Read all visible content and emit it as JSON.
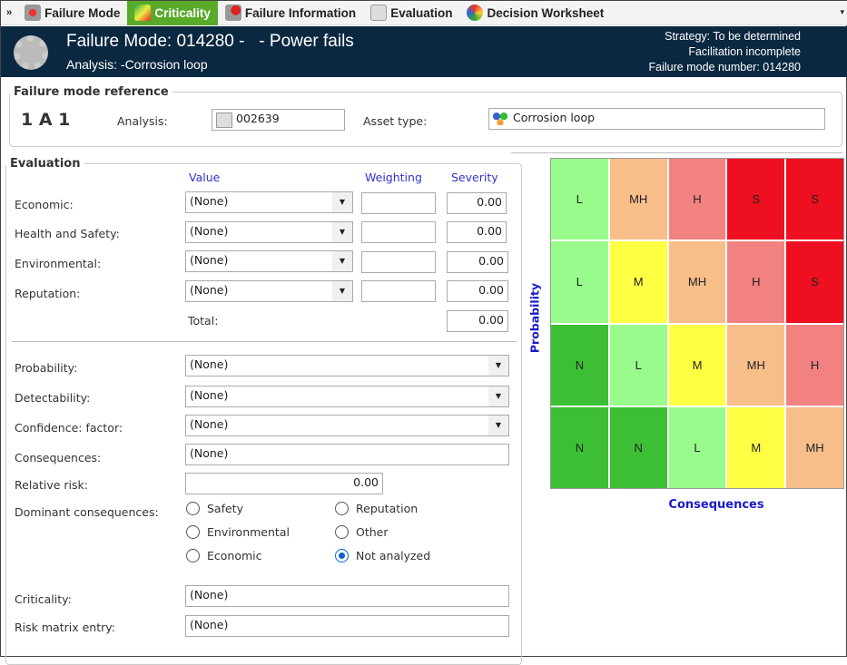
{
  "tabs": [
    {
      "label": "Failure Mode",
      "icon": "failure-mode-icon"
    },
    {
      "label": "Criticality",
      "icon": "criticality-icon",
      "active": true
    },
    {
      "label": "Failure Information",
      "icon": "failure-info-icon"
    },
    {
      "label": "Evaluation",
      "icon": "rcm2-icon"
    },
    {
      "label": "Decision Worksheet",
      "icon": "decision-icon"
    }
  ],
  "header": {
    "title": "Failure Mode: 014280 -   - Power fails",
    "subtitle": "Analysis: -Corrosion loop",
    "strategy": "Strategy: To be determined",
    "facilitation": "Facilitation incomplete",
    "number": "Failure mode number: 014280"
  },
  "reference": {
    "legend": "Failure mode reference",
    "code": "1 A 1",
    "analysis_label": "Analysis:",
    "analysis_value": "002639",
    "asset_label": "Asset type:",
    "asset_value": "Corrosion loop"
  },
  "evaluation": {
    "legend": "Evaluation",
    "col_value": "Value",
    "col_weighting": "Weighting",
    "col_severity": "Severity",
    "rows": [
      {
        "label": "Economic:",
        "value": "(None)",
        "weighting": "",
        "severity": "0.00"
      },
      {
        "label": "Health and Safety:",
        "value": "(None)",
        "weighting": "",
        "severity": "0.00"
      },
      {
        "label": "Environmental:",
        "value": "(None)",
        "weighting": "",
        "severity": "0.00"
      },
      {
        "label": "Reputation:",
        "value": "(None)",
        "weighting": "",
        "severity": "0.00"
      }
    ],
    "total_label": "Total:",
    "total": "0.00",
    "probability_label": "Probability:",
    "probability": "(None)",
    "detectability_label": "Detectability:",
    "detectability": "(None)",
    "confidence_label": "Confidence: factor:",
    "confidence": "(None)",
    "consequences_label": "Consequences:",
    "consequences": "(None)",
    "relative_risk_label": "Relative risk:",
    "relative_risk": "0.00",
    "dominant_label": "Dominant consequences:",
    "dominant_options": [
      "Safety",
      "Reputation",
      "Environmental",
      "Other",
      "Economic",
      "Not analyzed"
    ],
    "dominant_selected": "Not analyzed",
    "criticality_label": "Criticality:",
    "criticality": "(None)",
    "risk_matrix_label": "Risk matrix entry:",
    "risk_matrix": "(None)"
  },
  "matrix": {
    "y_label": "Probability",
    "x_label": "Consequences",
    "rows": [
      [
        "L",
        "MH",
        "H",
        "S",
        "S"
      ],
      [
        "L",
        "M",
        "MH",
        "H",
        "S"
      ],
      [
        "N",
        "L",
        "M",
        "MH",
        "H"
      ],
      [
        "N",
        "N",
        "L",
        "M",
        "MH"
      ]
    ],
    "colors": {
      "N": "#3dbf35",
      "L": "#99fb8c",
      "M": "#ffff44",
      "MH": "#f8be8a",
      "H": "#f28282",
      "S": "#ee1020"
    }
  }
}
